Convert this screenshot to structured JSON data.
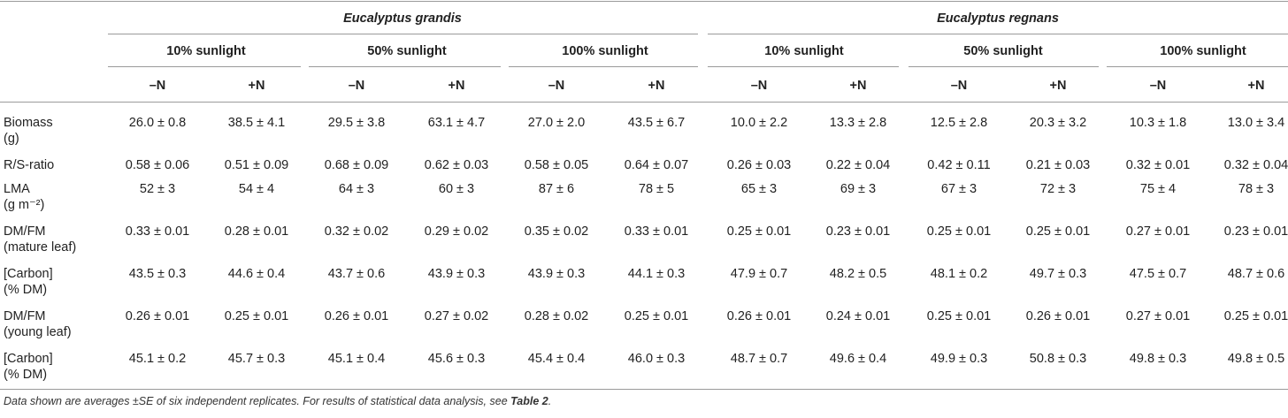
{
  "table": {
    "species": [
      "Eucalyptus grandis",
      "Eucalyptus regnans"
    ],
    "sunlight": [
      "10% sunlight",
      "50% sunlight",
      "100% sunlight",
      "10% sunlight",
      "50% sunlight",
      "100% sunlight"
    ],
    "treatments": [
      "–N",
      "+N",
      "–N",
      "+N",
      "–N",
      "+N",
      "–N",
      "+N",
      "–N",
      "+N",
      "–N",
      "+N"
    ],
    "rows": [
      {
        "label_lines": [
          "Biomass",
          "(g)"
        ],
        "values": [
          "26.0 ± 0.8",
          "38.5 ± 4.1",
          "29.5 ± 3.8",
          "63.1 ± 4.7",
          "27.0 ± 2.0",
          "43.5 ± 6.7",
          "10.0 ± 2.2",
          "13.3 ± 2.8",
          "12.5 ± 2.8",
          "20.3 ± 3.2",
          "10.3 ± 1.8",
          "13.0 ± 3.4"
        ]
      },
      {
        "label_lines": [
          "R/S-ratio"
        ],
        "values": [
          "0.58 ± 0.06",
          "0.51 ± 0.09",
          "0.68 ± 0.09",
          "0.62 ± 0.03",
          "0.58 ± 0.05",
          "0.64 ± 0.07",
          "0.26 ± 0.03",
          "0.22 ± 0.04",
          "0.42 ± 0.11",
          "0.21 ± 0.03",
          "0.32 ± 0.01",
          "0.32 ± 0.04"
        ]
      },
      {
        "label_lines": [
          "LMA",
          "(g m⁻²)"
        ],
        "values": [
          "52 ± 3",
          "54 ± 4",
          "64 ± 3",
          "60 ± 3",
          "87 ± 6",
          "78 ± 5",
          "65 ± 3",
          "69 ± 3",
          "67 ± 3",
          "72 ± 3",
          "75 ± 4",
          "78 ± 3"
        ]
      },
      {
        "label_lines": [
          "DM/FM",
          "(mature leaf)"
        ],
        "values": [
          "0.33 ± 0.01",
          "0.28 ± 0.01",
          "0.32 ± 0.02",
          "0.29 ± 0.02",
          "0.35 ± 0.02",
          "0.33 ± 0.01",
          "0.25 ± 0.01",
          "0.23 ± 0.01",
          "0.25 ± 0.01",
          "0.25 ± 0.01",
          "0.27 ± 0.01",
          "0.23 ± 0.01"
        ]
      },
      {
        "label_lines": [
          "[Carbon]",
          "(% DM)"
        ],
        "values": [
          "43.5 ± 0.3",
          "44.6 ± 0.4",
          "43.7 ± 0.6",
          "43.9 ± 0.3",
          "43.9 ± 0.3",
          "44.1 ± 0.3",
          "47.9 ± 0.7",
          "48.2 ± 0.5",
          "48.1 ± 0.2",
          "49.7 ± 0.3",
          "47.5 ± 0.7",
          "48.7 ± 0.6"
        ]
      },
      {
        "label_lines": [
          "DM/FM",
          "(young leaf)"
        ],
        "values": [
          "0.26 ± 0.01",
          "0.25 ± 0.01",
          "0.26 ± 0.01",
          "0.27 ± 0.02",
          "0.28 ± 0.02",
          "0.25 ± 0.01",
          "0.26 ± 0.01",
          "0.24 ± 0.01",
          "0.25 ± 0.01",
          "0.26 ± 0.01",
          "0.27 ± 0.01",
          "0.25 ± 0.01"
        ]
      },
      {
        "label_lines": [
          "[Carbon]",
          "(% DM)"
        ],
        "values": [
          "45.1 ± 0.2",
          "45.7 ± 0.3",
          "45.1 ± 0.4",
          "45.6 ± 0.3",
          "45.4 ± 0.4",
          "46.0 ± 0.3",
          "48.7 ± 0.7",
          "49.6 ± 0.4",
          "49.9 ± 0.3",
          "50.8 ± 0.3",
          "49.8 ± 0.3",
          "49.8 ± 0.5"
        ]
      }
    ]
  },
  "footnote": {
    "text_before": "Data shown are averages ±SE of six independent replicates. For results of statistical data analysis, see ",
    "link_text": "Table 2",
    "text_after": "."
  }
}
